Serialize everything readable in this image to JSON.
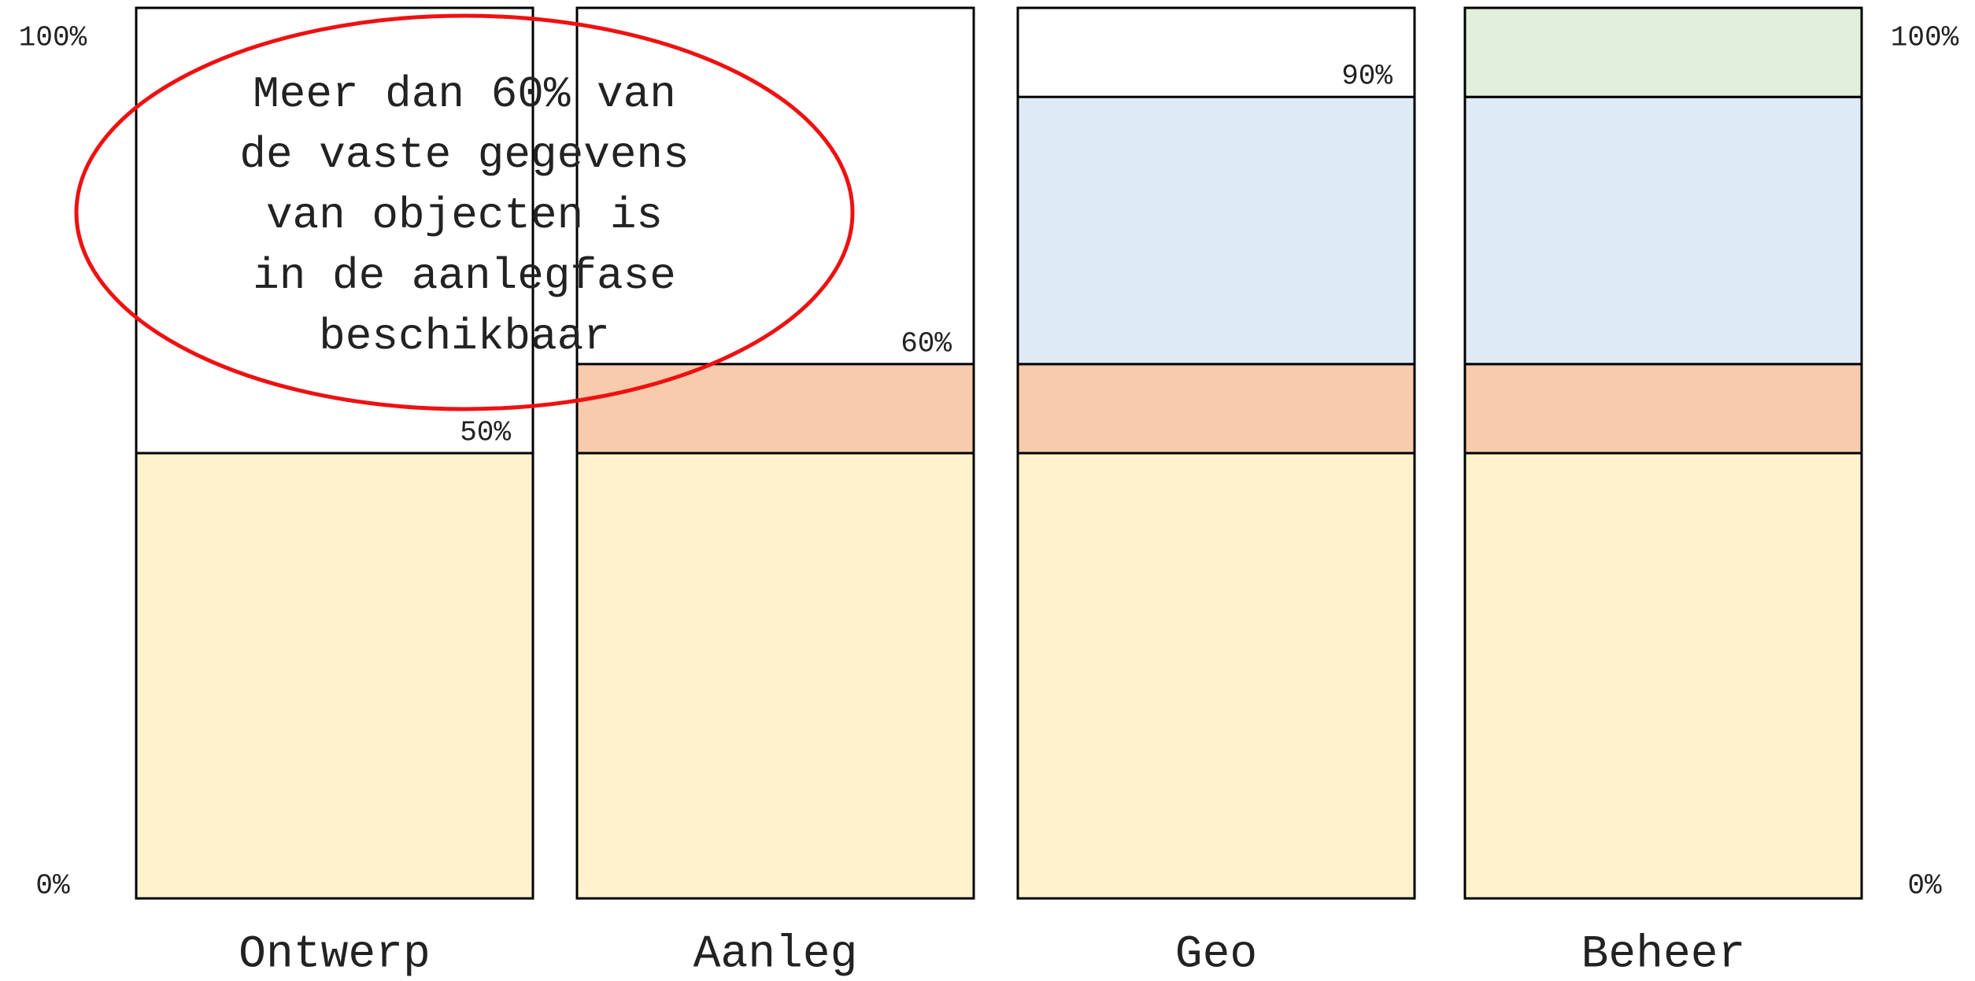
{
  "chart_data": {
    "type": "bar",
    "stacked": true,
    "categories": [
      "Ontwerp",
      "Aanleg",
      "Geo",
      "Beheer"
    ],
    "series": [
      {
        "color": "#fff2cc",
        "values": [
          50,
          50,
          50,
          50
        ]
      },
      {
        "color": "#f8cbad",
        "values": [
          null,
          10,
          10,
          10
        ]
      },
      {
        "color": "#deebf7",
        "values": [
          null,
          null,
          30,
          30
        ]
      },
      {
        "color": "#e2efda",
        "values": [
          null,
          null,
          null,
          10
        ]
      }
    ],
    "ylim": [
      0,
      100
    ],
    "yticks": [
      {
        "value": 0,
        "label": "0%"
      },
      {
        "value": 100,
        "label": "100%"
      }
    ],
    "tick_sides": [
      "left",
      "right"
    ],
    "annotations": [
      {
        "category": 0,
        "value": 50,
        "text": "50%"
      },
      {
        "category": 1,
        "value": 60,
        "text": "60%"
      },
      {
        "category": 2,
        "value": 90,
        "text": "90%"
      }
    ],
    "callout": {
      "color": "#ee1111",
      "lines": [
        "Meer dan 60% van",
        "de vaste gegevens",
        "van objecten is",
        "in de aanlegfase",
        "beschikbaar"
      ]
    }
  }
}
